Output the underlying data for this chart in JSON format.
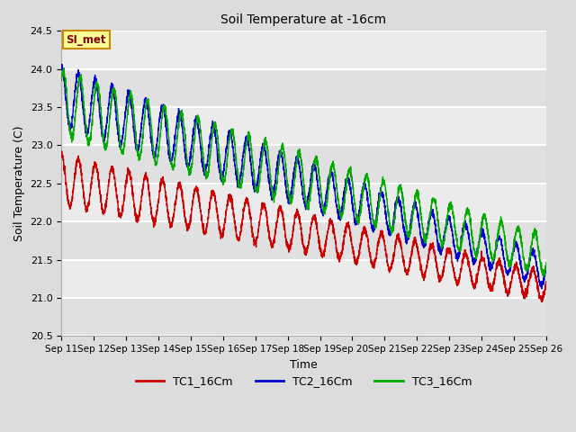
{
  "title": "Soil Temperature at -16cm",
  "xlabel": "Time",
  "ylabel": "Soil Temperature (C)",
  "ylim": [
    20.5,
    24.5
  ],
  "background_color": "#dcdcdc",
  "plot_bg_color": "#dcdcdc",
  "grid_color": "#ffffff",
  "annotation_text": "SI_met",
  "annotation_bg": "#ffff99",
  "annotation_border": "#cc8800",
  "tc1_color": "#cc0000",
  "tc2_color": "#0000cc",
  "tc3_color": "#00aa00",
  "legend_labels": [
    "TC1_16Cm",
    "TC2_16Cm",
    "TC3_16Cm"
  ],
  "tick_labels": [
    "Sep 11",
    "Sep 12",
    "Sep 13",
    "Sep 14",
    "Sep 15",
    "Sep 16",
    "Sep 17",
    "Sep 18",
    "Sep 19",
    "Sep 20",
    "Sep 21",
    "Sep 22",
    "Sep 23",
    "Sep 24",
    "Sep 25",
    "Sep 26"
  ],
  "yticks": [
    20.5,
    21.0,
    21.5,
    22.0,
    22.5,
    23.0,
    23.5,
    24.0,
    24.5
  ]
}
